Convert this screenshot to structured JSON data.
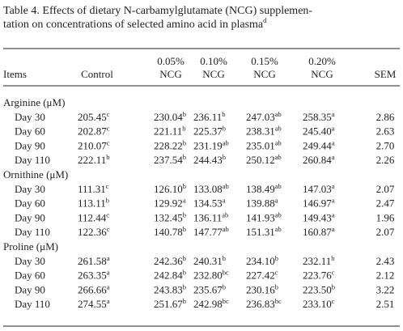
{
  "table": {
    "title_lines": [
      "Table 4.  Effects of dietary N-carbamylglutamate (NCG) supplemen-",
      "tation on concentrations of selected amino acid in plasma"
    ],
    "title_sup": "d",
    "columns": [
      [
        "Items"
      ],
      [
        "Control"
      ],
      [
        "0.05%",
        "NCG"
      ],
      [
        "0.10%",
        "NCG"
      ],
      [
        "0.15%",
        "NCG"
      ],
      [
        "0.20%",
        "NCG"
      ],
      [
        "SEM"
      ]
    ],
    "groups": [
      {
        "name": "Arginine (μM)",
        "rows": [
          {
            "label": "Day 30",
            "cells": [
              {
                "v": "205.45",
                "sup": "c"
              },
              {
                "v": "230.04",
                "sup": "b"
              },
              {
                "v": "236.11",
                "sup": "b"
              },
              {
                "v": "247.03",
                "sup": "ab"
              },
              {
                "v": "258.35",
                "sup": "a"
              }
            ],
            "sem": "2.86"
          },
          {
            "label": "Day 60",
            "cells": [
              {
                "v": "202.87",
                "sup": "c"
              },
              {
                "v": "221.11",
                "sup": "b"
              },
              {
                "v": "225.37",
                "sup": "b"
              },
              {
                "v": "238.31",
                "sup": "ab"
              },
              {
                "v": "245.40",
                "sup": "a"
              }
            ],
            "sem": "2.63"
          },
          {
            "label": "Day 90",
            "cells": [
              {
                "v": "210.07",
                "sup": "c"
              },
              {
                "v": "228.22",
                "sup": "b"
              },
              {
                "v": "231.19",
                "sup": "ab"
              },
              {
                "v": "235.01",
                "sup": "ab"
              },
              {
                "v": "249.44",
                "sup": "a"
              }
            ],
            "sem": "2.70"
          },
          {
            "label": "Day 110",
            "cells": [
              {
                "v": "222.11",
                "sup": "b"
              },
              {
                "v": "237.54",
                "sup": "b"
              },
              {
                "v": "244.43",
                "sup": "b"
              },
              {
                "v": "250.12",
                "sup": "ab"
              },
              {
                "v": "260.84",
                "sup": "a"
              }
            ],
            "sem": "2.26"
          }
        ]
      },
      {
        "name": "Ornithine (μM)",
        "rows": [
          {
            "label": "Day 30",
            "cells": [
              {
                "v": "111.31",
                "sup": "c"
              },
              {
                "v": "126.10",
                "sup": "b"
              },
              {
                "v": "133.08",
                "sup": "ab"
              },
              {
                "v": "138.49",
                "sup": "ab"
              },
              {
                "v": "147.03",
                "sup": "a"
              }
            ],
            "sem": "2.07"
          },
          {
            "label": "Day 60",
            "cells": [
              {
                "v": "113.11",
                "sup": "b"
              },
              {
                "v": "129.92",
                "sup": "a"
              },
              {
                "v": "134.53",
                "sup": "a"
              },
              {
                "v": "139.88",
                "sup": "a"
              },
              {
                "v": "146.97",
                "sup": "a"
              }
            ],
            "sem": "2.47"
          },
          {
            "label": "Day 90",
            "cells": [
              {
                "v": "112.44",
                "sup": "c"
              },
              {
                "v": "132.45",
                "sup": "b"
              },
              {
                "v": "136.11",
                "sup": "ab"
              },
              {
                "v": "141.93",
                "sup": "ab"
              },
              {
                "v": "149.43",
                "sup": "a"
              }
            ],
            "sem": "1.96"
          },
          {
            "label": "Day 110",
            "cells": [
              {
                "v": "122.36",
                "sup": "c"
              },
              {
                "v": "140.78",
                "sup": "b"
              },
              {
                "v": "147.77",
                "sup": "ab"
              },
              {
                "v": "151.31",
                "sup": "ab"
              },
              {
                "v": "160.87",
                "sup": "a"
              }
            ],
            "sem": "2.07"
          }
        ]
      },
      {
        "name": "Proline (μM)",
        "rows": [
          {
            "label": "Day 30",
            "cells": [
              {
                "v": "261.58",
                "sup": "a"
              },
              {
                "v": "242.36",
                "sup": "b"
              },
              {
                "v": "240.31",
                "sup": "b"
              },
              {
                "v": "234.10",
                "sup": "b"
              },
              {
                "v": "232.11",
                "sup": "b"
              }
            ],
            "sem": "2.43"
          },
          {
            "label": "Day 60",
            "cells": [
              {
                "v": "263.35",
                "sup": "a"
              },
              {
                "v": "242.84",
                "sup": "b"
              },
              {
                "v": "232.80",
                "sup": "bc"
              },
              {
                "v": "227.42",
                "sup": "c"
              },
              {
                "v": "223.76",
                "sup": "c"
              }
            ],
            "sem": "2.12"
          },
          {
            "label": "Day 90",
            "cells": [
              {
                "v": "266.66",
                "sup": "a"
              },
              {
                "v": "243.83",
                "sup": "b"
              },
              {
                "v": "235.67",
                "sup": "b"
              },
              {
                "v": "230.16",
                "sup": "b"
              },
              {
                "v": "223.50",
                "sup": "b"
              }
            ],
            "sem": "3.22"
          },
          {
            "label": "Day 110",
            "cells": [
              {
                "v": "274.55",
                "sup": "a"
              },
              {
                "v": "251.67",
                "sup": "b"
              },
              {
                "v": "242.98",
                "sup": "bc"
              },
              {
                "v": "236.83",
                "sup": "bc"
              },
              {
                "v": "233.10",
                "sup": "c"
              }
            ],
            "sem": "2.51"
          }
        ]
      }
    ]
  }
}
